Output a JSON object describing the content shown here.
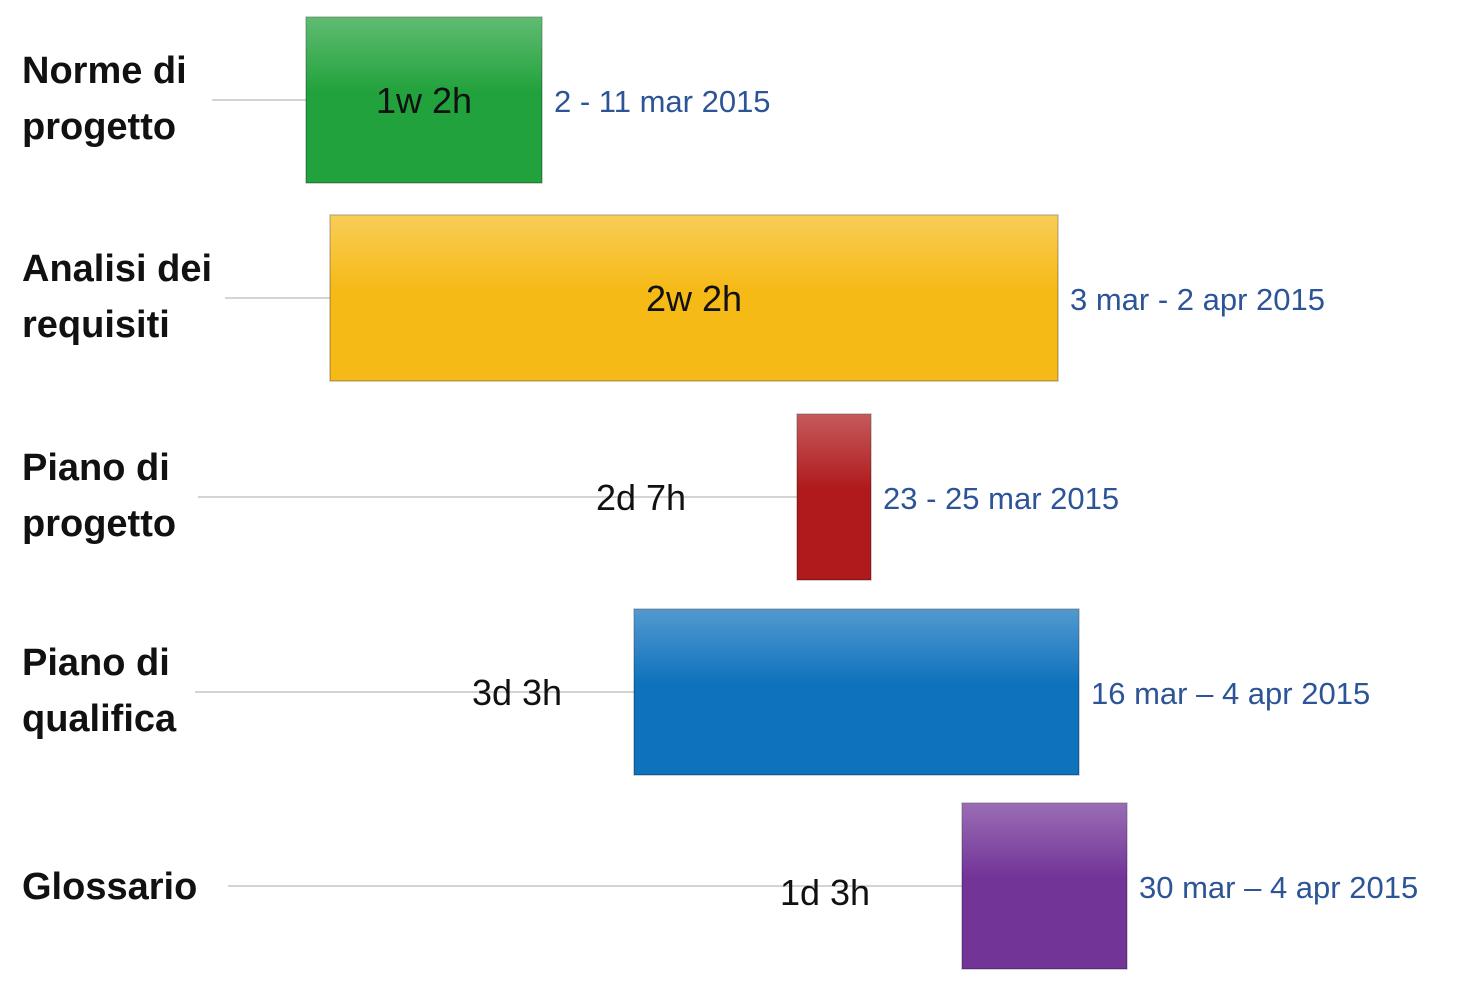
{
  "chart_data": {
    "type": "bar",
    "orientation": "horizontal-gantt",
    "x_unit": "date",
    "tasks": [
      {
        "label_lines": [
          "Norme di",
          "progetto"
        ],
        "duration": "1w 2h",
        "dates_text": "2 - 11 mar 2015",
        "start": "2015-03-02",
        "end": "2015-03-11",
        "color": "#22a23c"
      },
      {
        "label_lines": [
          "Analisi dei",
          "requisiti"
        ],
        "duration": "2w 2h",
        "dates_text": "3 mar - 2 apr 2015",
        "start": "2015-03-03",
        "end": "2015-04-02",
        "color": "#f6ba17"
      },
      {
        "label_lines": [
          "Piano di",
          "progetto"
        ],
        "duration": "2d 7h",
        "dates_text": "23 - 25 mar 2015",
        "start": "2015-03-23",
        "end": "2015-03-25",
        "color": "#b01a1c"
      },
      {
        "label_lines": [
          "Piano di",
          "qualifica"
        ],
        "duration": "3d 3h",
        "dates_text": "16 mar – 4 apr 2015",
        "start": "2015-03-16",
        "end": "2015-04-04",
        "color": "#0f72bd"
      },
      {
        "label_lines": [
          "Glossario"
        ],
        "duration": "1d 3h",
        "dates_text": "30 mar – 4 apr 2015",
        "start": "2015-03-30",
        "end": "2015-04-04",
        "color": "#733498"
      }
    ]
  }
}
